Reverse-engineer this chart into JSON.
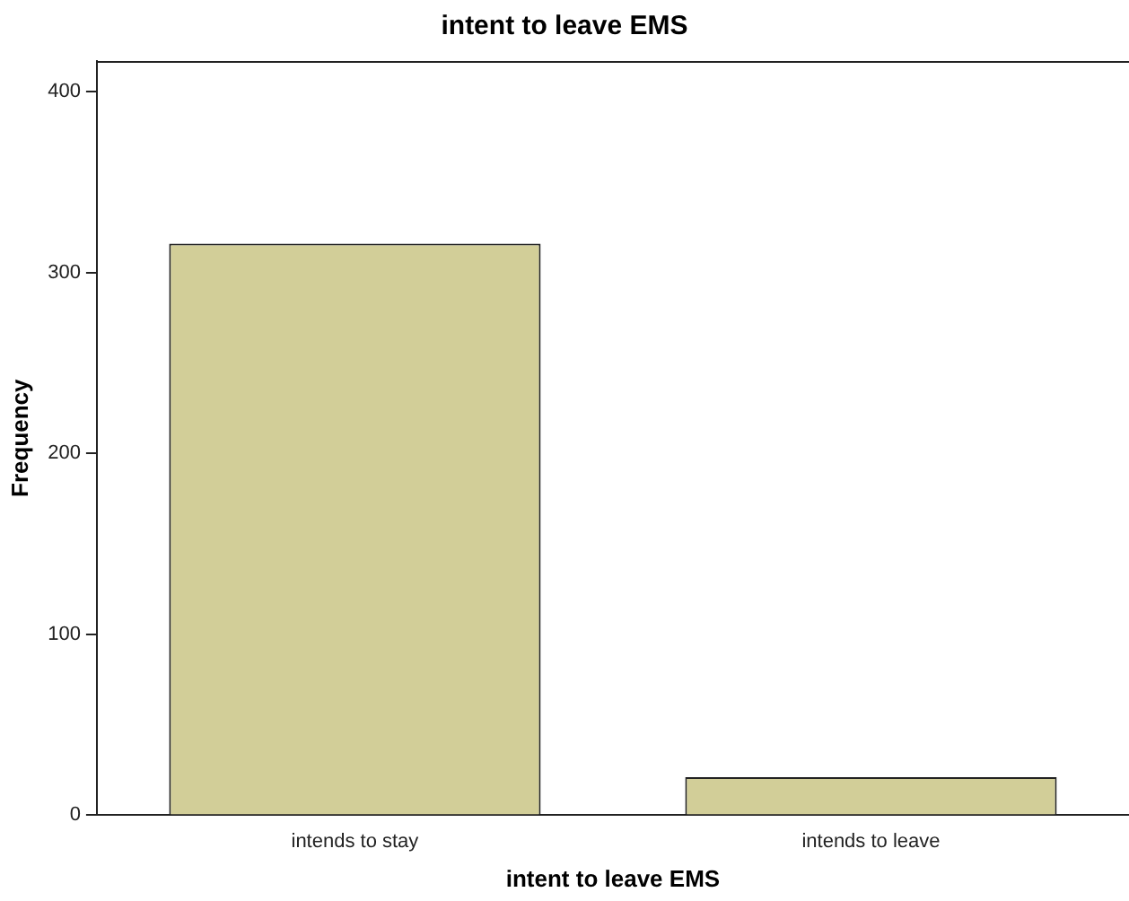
{
  "chart_data": {
    "type": "bar",
    "title": "intent to leave EMS",
    "xlabel": "intent to leave EMS",
    "ylabel": "Frequency",
    "categories": [
      "intends to stay",
      "intends to leave"
    ],
    "values": [
      316,
      21
    ],
    "color": "#d2ce98",
    "ylim": [
      0,
      417
    ],
    "yticks": [
      0,
      100,
      200,
      300,
      400
    ],
    "grid": false,
    "legend": false
  }
}
